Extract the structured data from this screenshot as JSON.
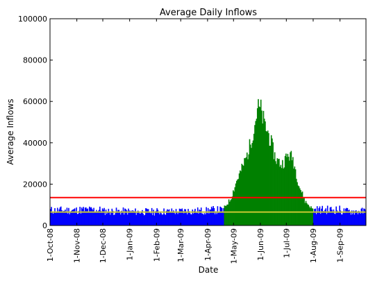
{
  "chart_data": {
    "type": "bar",
    "title": "Average Daily Inflows",
    "xlabel": "Date",
    "ylabel": "Average Inflows",
    "ylim": [
      0,
      100000
    ],
    "xlim": [
      "2008-10-01",
      "2009-09-30"
    ],
    "y_ticks": [
      "0",
      "20000",
      "40000",
      "60000",
      "80000",
      "100000"
    ],
    "x_ticks": [
      {
        "date": "2008-10-01",
        "label": "1-Oct-08"
      },
      {
        "date": "2008-11-01",
        "label": "1-Nov-08"
      },
      {
        "date": "2008-12-01",
        "label": "1-Dec-08"
      },
      {
        "date": "2009-01-01",
        "label": "1-Jan-09"
      },
      {
        "date": "2009-02-01",
        "label": "1-Feb-09"
      },
      {
        "date": "2009-03-01",
        "label": "1-Mar-09"
      },
      {
        "date": "2009-04-01",
        "label": "1-Apr-09"
      },
      {
        "date": "2009-05-01",
        "label": "1-May-09"
      },
      {
        "date": "2009-06-01",
        "label": "1-Jun-09"
      },
      {
        "date": "2009-07-01",
        "label": "1-Jul-09"
      },
      {
        "date": "2009-08-01",
        "label": "1-Aug-09"
      },
      {
        "date": "2009-09-01",
        "label": "1-Sep-09"
      }
    ],
    "series": [
      {
        "color": "#0000ff",
        "monthly_avg": [
          {
            "month": "2008-10",
            "value": 7500
          },
          {
            "month": "2008-11",
            "value": 7700
          },
          {
            "month": "2008-12",
            "value": 7000
          },
          {
            "month": "2009-01",
            "value": 6800
          },
          {
            "month": "2009-02",
            "value": 6900
          },
          {
            "month": "2009-03",
            "value": 7200
          },
          {
            "month": "2009-04",
            "value": 7600
          },
          {
            "month": "2009-08",
            "value": 7800
          },
          {
            "month": "2009-09",
            "value": 7000
          }
        ]
      },
      {
        "color": "#008000",
        "period": [
          "2009-04-20",
          "2009-07-31"
        ],
        "daily_profile": [
          {
            "date": "2009-04-20",
            "value": 9000
          },
          {
            "date": "2009-04-27",
            "value": 13000
          },
          {
            "date": "2009-05-04",
            "value": 22000
          },
          {
            "date": "2009-05-11",
            "value": 29000
          },
          {
            "date": "2009-05-18",
            "value": 37000
          },
          {
            "date": "2009-05-25",
            "value": 50000
          },
          {
            "date": "2009-05-28",
            "value": 58000
          },
          {
            "date": "2009-06-01",
            "value": 57000
          },
          {
            "date": "2009-06-05",
            "value": 50000
          },
          {
            "date": "2009-06-10",
            "value": 45000
          },
          {
            "date": "2009-06-18",
            "value": 33000
          },
          {
            "date": "2009-06-25",
            "value": 30000
          },
          {
            "date": "2009-07-03",
            "value": 35000
          },
          {
            "date": "2009-07-08",
            "value": 33000
          },
          {
            "date": "2009-07-15",
            "value": 20000
          },
          {
            "date": "2009-07-22",
            "value": 12000
          },
          {
            "date": "2009-07-31",
            "value": 8000
          }
        ]
      }
    ],
    "reference_lines": [
      {
        "color": "#ff0000",
        "y": 13500
      },
      {
        "color": "#c8c832",
        "y": 6500
      }
    ],
    "grid": false,
    "legend": "none"
  }
}
